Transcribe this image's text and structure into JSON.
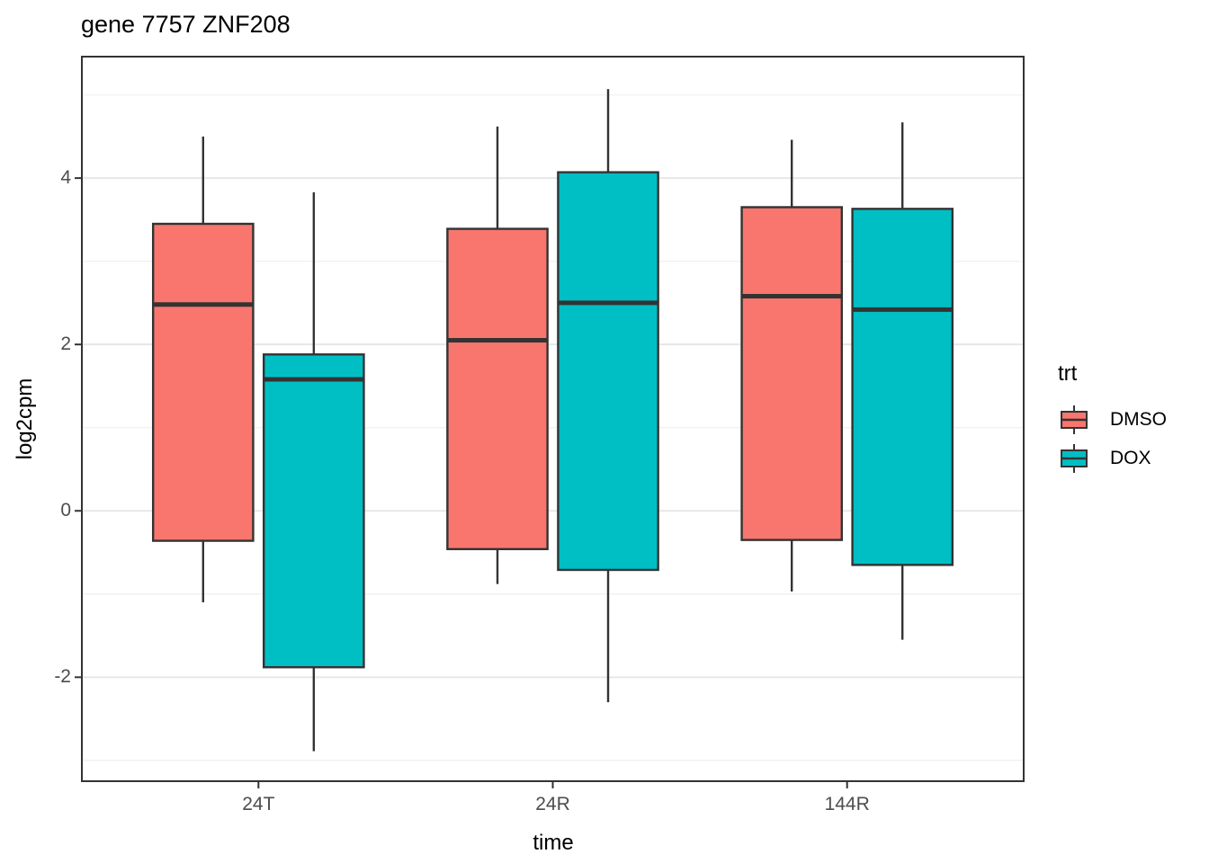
{
  "chart_data": {
    "type": "boxplot",
    "title": "gene 7757 ZNF208",
    "xlabel": "time",
    "ylabel": "log2cpm",
    "categories": [
      "24T",
      "24R",
      "144R"
    ],
    "series": [
      {
        "name": "DMSO",
        "color": "#F8766D",
        "boxes": [
          {
            "category": "24T",
            "min": -1.1,
            "q1": -0.36,
            "median": 2.48,
            "q3": 3.45,
            "max": 4.5
          },
          {
            "category": "24R",
            "min": -0.88,
            "q1": -0.46,
            "median": 2.05,
            "q3": 3.39,
            "max": 4.62
          },
          {
            "category": "144R",
            "min": -0.97,
            "q1": -0.35,
            "median": 2.58,
            "q3": 3.65,
            "max": 4.46
          }
        ]
      },
      {
        "name": "DOX",
        "color": "#00BFC4",
        "boxes": [
          {
            "category": "24T",
            "min": -2.89,
            "q1": -1.88,
            "median": 1.58,
            "q3": 1.88,
            "max": 3.83
          },
          {
            "category": "24R",
            "min": -2.3,
            "q1": -0.71,
            "median": 2.5,
            "q3": 4.07,
            "max": 5.07
          },
          {
            "category": "144R",
            "min": -1.55,
            "q1": -0.65,
            "median": 2.42,
            "q3": 3.63,
            "max": 4.67
          }
        ]
      }
    ],
    "y_axis": {
      "major_ticks": [
        -2,
        0,
        2,
        4
      ],
      "minor_gridlines": [
        -3,
        -1,
        1,
        3,
        5
      ],
      "ylim": [
        -3.25,
        5.46
      ]
    },
    "legend": {
      "title": "trt",
      "position": "right"
    },
    "grid": true,
    "panel_background": "#FFFFFF"
  },
  "styles": {
    "box_border": "#333333",
    "median_color": "#333333",
    "whisker_color": "#333333",
    "panel_border": "#333333",
    "tick_color": "#333333",
    "tick_label_color": "#4D4D4D",
    "grid_major": "#E7E7E7",
    "grid_minor": "#F1F1F1"
  }
}
